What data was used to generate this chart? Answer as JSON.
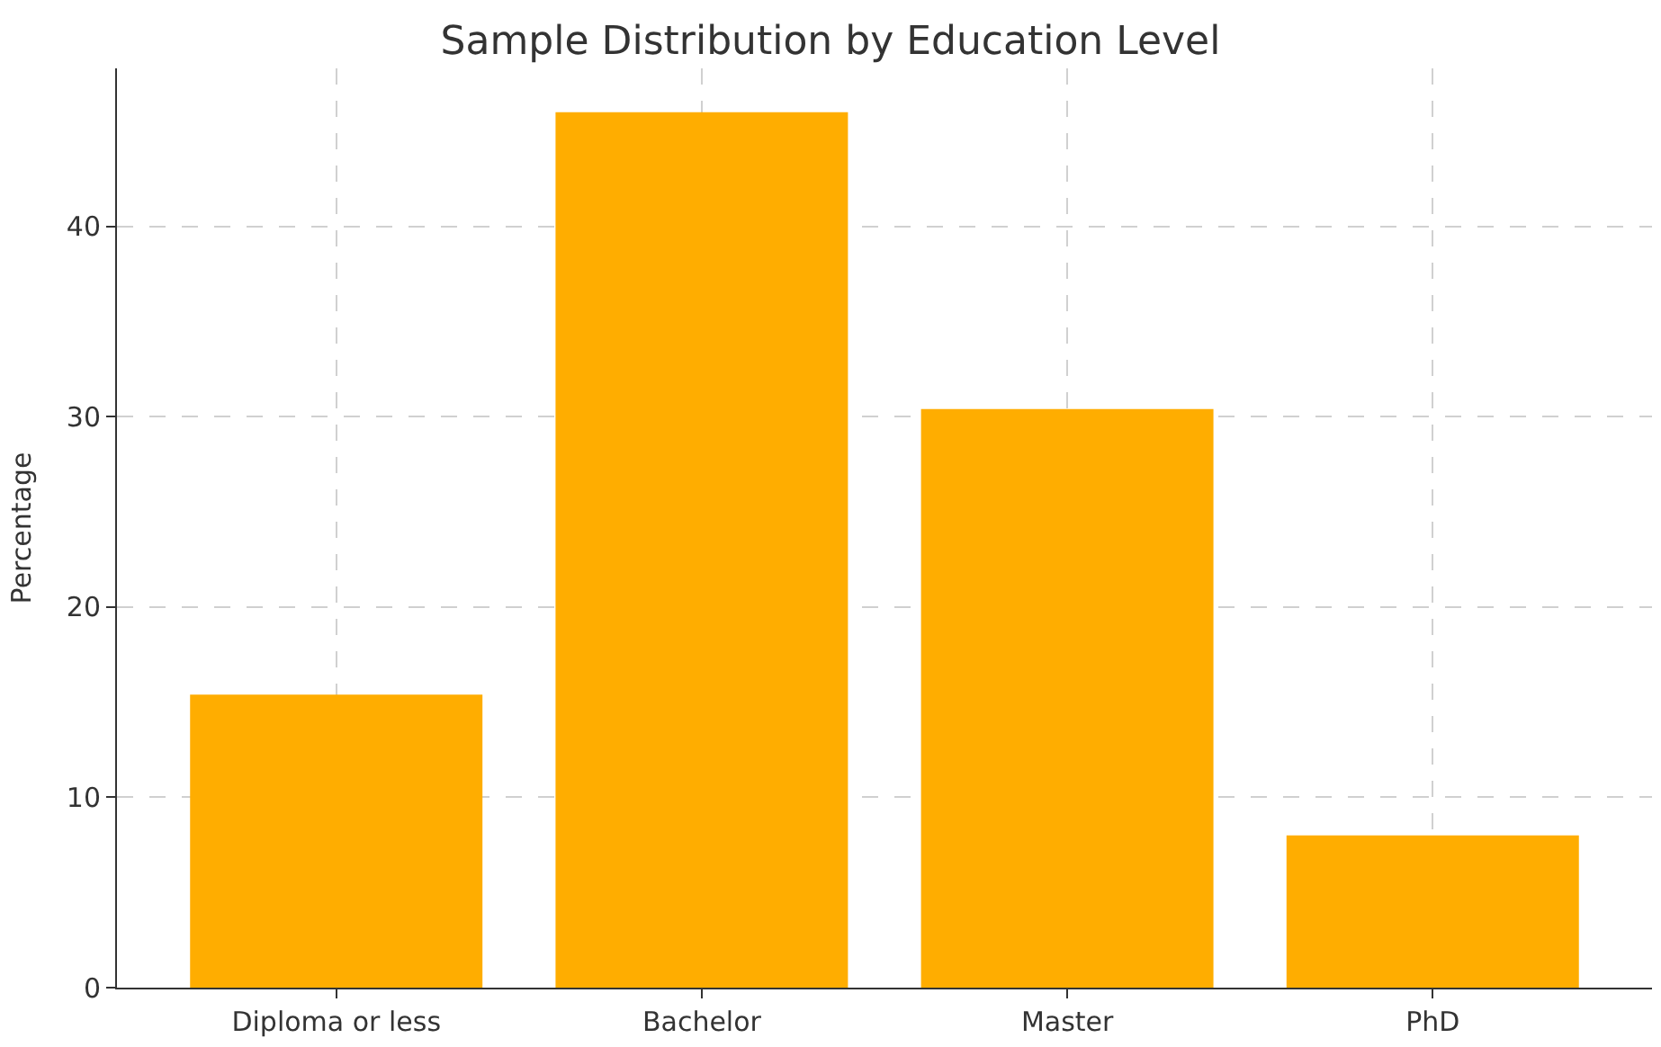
{
  "chart_data": {
    "type": "bar",
    "title": "Sample Distribution by Education Level",
    "ylabel": "Percentage",
    "categories": [
      "Diploma or less",
      "Bachelor",
      "Master",
      "PhD"
    ],
    "values": [
      15.4,
      46.0,
      30.4,
      8.0
    ],
    "color": "#ffad00",
    "ylim": [
      0,
      48.3
    ],
    "yticks": [
      0,
      10,
      20,
      30,
      40
    ],
    "grid": true
  }
}
